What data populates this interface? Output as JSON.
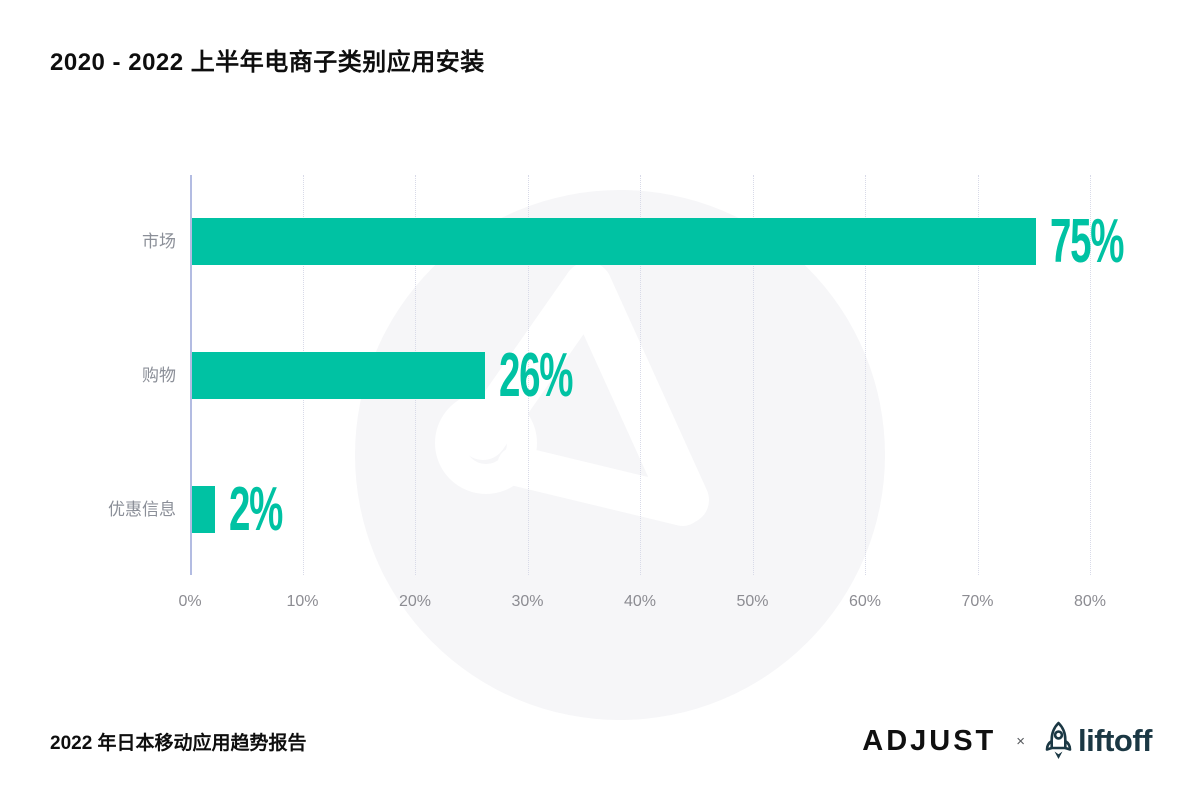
{
  "title": "2020 - 2022 上半年电商子类别应用安装",
  "chart_data": {
    "type": "bar",
    "orientation": "horizontal",
    "title": "2020 - 2022 上半年电商子类别应用安装",
    "categories": [
      "市场",
      "购物",
      "优惠信息"
    ],
    "values": [
      75,
      26,
      2
    ],
    "value_labels": [
      "75%",
      "26%",
      "2%"
    ],
    "xlim": [
      0,
      80
    ],
    "x_tick_values": [
      0,
      10,
      20,
      30,
      40,
      50,
      60,
      70,
      80
    ],
    "x_ticks": [
      "0%",
      "10%",
      "20%",
      "30%",
      "40%",
      "50%",
      "60%",
      "70%",
      "80%"
    ],
    "grid": "vertical-dotted",
    "legend": "none",
    "bar_color": "#00c2a3"
  },
  "colors": {
    "bar": "#00c2a3",
    "value_label": "#00c2a3",
    "category_label": "#8b8f98",
    "tick_label": "#8c8c92",
    "axis_line": "#b3bce2",
    "gridline": "#d8dae8",
    "watermark_circle": "#f6f6f8",
    "title_text": "#0e0e0e",
    "liftoff_navy": "#1b3844"
  },
  "watermark": {
    "icon": "adjust-a-logo-watermark"
  },
  "footer": {
    "source": "2022 年日本移动应用趋势报告",
    "adjust_logo": "ADJUST",
    "separator": "×",
    "liftoff_logo": "liftoff"
  }
}
